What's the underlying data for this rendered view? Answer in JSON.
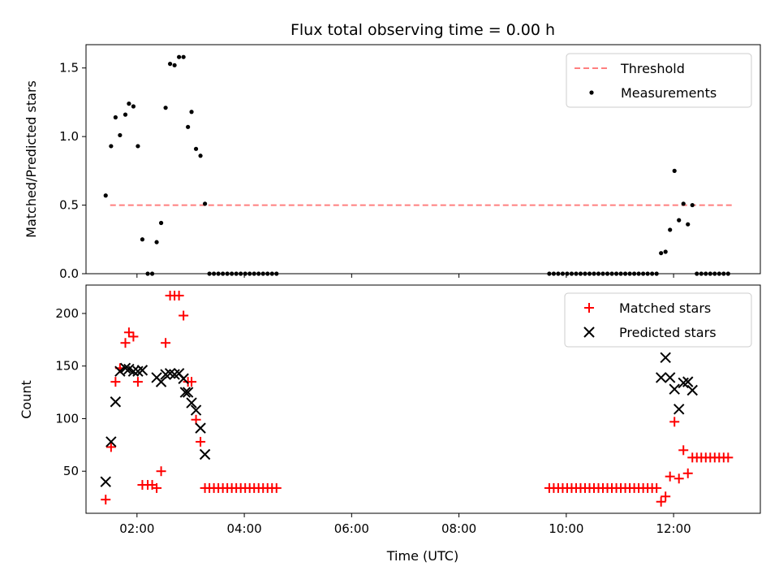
{
  "chart_data": [
    {
      "type": "scatter",
      "title": "Flux total observing time = 0.00 h",
      "xlabel": "",
      "ylabel": "Matched/Predicted stars",
      "xlim": [
        "01:03",
        "13:37"
      ],
      "ylim": [
        0,
        1.67
      ],
      "yticks": [
        0.0,
        0.5,
        1.0,
        1.5
      ],
      "ytick_labels": [
        "0.0",
        "0.5",
        "1.0",
        "1.5"
      ],
      "xticks": [
        "02:00",
        "04:00",
        "06:00",
        "08:00",
        "10:00",
        "12:00"
      ],
      "show_x_tick_labels": false,
      "grid": false,
      "legend_position": "top-right",
      "series": [
        {
          "name": "Threshold",
          "kind": "hline",
          "style": "dashed",
          "color": "#ff7f7f",
          "x_range": [
            "01:30",
            "13:05"
          ],
          "y": 0.5
        },
        {
          "name": "Measurements",
          "kind": "scatter",
          "marker": "dot",
          "color": "#000000",
          "points": [
            {
              "x": "01:25",
              "y": 0.57
            },
            {
              "x": "01:31",
              "y": 0.93
            },
            {
              "x": "01:36",
              "y": 1.14
            },
            {
              "x": "01:41",
              "y": 1.01
            },
            {
              "x": "01:47",
              "y": 1.16
            },
            {
              "x": "01:51",
              "y": 1.24
            },
            {
              "x": "01:56",
              "y": 1.22
            },
            {
              "x": "02:01",
              "y": 0.93
            },
            {
              "x": "02:06",
              "y": 0.25
            },
            {
              "x": "02:12",
              "y": 0.0
            },
            {
              "x": "02:17",
              "y": 0.0
            },
            {
              "x": "02:22",
              "y": 0.23
            },
            {
              "x": "02:27",
              "y": 0.37
            },
            {
              "x": "02:32",
              "y": 1.21
            },
            {
              "x": "02:37",
              "y": 1.53
            },
            {
              "x": "02:42",
              "y": 1.52
            },
            {
              "x": "02:47",
              "y": 1.58
            },
            {
              "x": "02:52",
              "y": 1.58
            },
            {
              "x": "02:57",
              "y": 1.07
            },
            {
              "x": "03:01",
              "y": 1.18
            },
            {
              "x": "03:06",
              "y": 0.91
            },
            {
              "x": "03:11",
              "y": 0.86
            },
            {
              "x": "03:16",
              "y": 0.51
            },
            {
              "x": "03:21",
              "y": 0.0
            },
            {
              "x": "03:26",
              "y": 0.0
            },
            {
              "x": "03:31",
              "y": 0.0
            },
            {
              "x": "03:36",
              "y": 0.0
            },
            {
              "x": "03:41",
              "y": 0.0
            },
            {
              "x": "03:46",
              "y": 0.0
            },
            {
              "x": "03:51",
              "y": 0.0
            },
            {
              "x": "03:56",
              "y": 0.0
            },
            {
              "x": "04:01",
              "y": 0.0
            },
            {
              "x": "04:06",
              "y": 0.0
            },
            {
              "x": "04:11",
              "y": 0.0
            },
            {
              "x": "04:16",
              "y": 0.0
            },
            {
              "x": "04:21",
              "y": 0.0
            },
            {
              "x": "04:26",
              "y": 0.0
            },
            {
              "x": "04:31",
              "y": 0.0
            },
            {
              "x": "04:36",
              "y": 0.0
            },
            {
              "x": "09:41",
              "y": 0.0
            },
            {
              "x": "09:46",
              "y": 0.0
            },
            {
              "x": "09:51",
              "y": 0.0
            },
            {
              "x": "09:56",
              "y": 0.0
            },
            {
              "x": "10:01",
              "y": 0.0
            },
            {
              "x": "10:06",
              "y": 0.0
            },
            {
              "x": "10:11",
              "y": 0.0
            },
            {
              "x": "10:16",
              "y": 0.0
            },
            {
              "x": "10:21",
              "y": 0.0
            },
            {
              "x": "10:26",
              "y": 0.0
            },
            {
              "x": "10:31",
              "y": 0.0
            },
            {
              "x": "10:36",
              "y": 0.0
            },
            {
              "x": "10:41",
              "y": 0.0
            },
            {
              "x": "10:46",
              "y": 0.0
            },
            {
              "x": "10:51",
              "y": 0.0
            },
            {
              "x": "10:56",
              "y": 0.0
            },
            {
              "x": "11:01",
              "y": 0.0
            },
            {
              "x": "11:06",
              "y": 0.0
            },
            {
              "x": "11:11",
              "y": 0.0
            },
            {
              "x": "11:16",
              "y": 0.0
            },
            {
              "x": "11:21",
              "y": 0.0
            },
            {
              "x": "11:26",
              "y": 0.0
            },
            {
              "x": "11:31",
              "y": 0.0
            },
            {
              "x": "11:36",
              "y": 0.0
            },
            {
              "x": "11:41",
              "y": 0.0
            },
            {
              "x": "11:46",
              "y": 0.15
            },
            {
              "x": "11:51",
              "y": 0.16
            },
            {
              "x": "11:56",
              "y": 0.32
            },
            {
              "x": "12:01",
              "y": 0.75
            },
            {
              "x": "12:06",
              "y": 0.39
            },
            {
              "x": "12:11",
              "y": 0.51
            },
            {
              "x": "12:16",
              "y": 0.36
            },
            {
              "x": "12:21",
              "y": 0.5
            },
            {
              "x": "12:26",
              "y": 0.0
            },
            {
              "x": "12:31",
              "y": 0.0
            },
            {
              "x": "12:36",
              "y": 0.0
            },
            {
              "x": "12:41",
              "y": 0.0
            },
            {
              "x": "12:46",
              "y": 0.0
            },
            {
              "x": "12:51",
              "y": 0.0
            },
            {
              "x": "12:56",
              "y": 0.0
            },
            {
              "x": "13:01",
              "y": 0.0
            }
          ]
        }
      ]
    },
    {
      "type": "scatter",
      "title": "",
      "xlabel": "Time (UTC)",
      "ylabel": "Count",
      "xlim": [
        "01:03",
        "13:37"
      ],
      "ylim": [
        10,
        227
      ],
      "yticks": [
        50,
        100,
        150,
        200
      ],
      "ytick_labels": [
        "50",
        "100",
        "150",
        "200"
      ],
      "xticks": [
        "02:00",
        "04:00",
        "06:00",
        "08:00",
        "10:00",
        "12:00"
      ],
      "xtick_labels": [
        "02:00",
        "04:00",
        "06:00",
        "08:00",
        "10:00",
        "12:00"
      ],
      "show_x_tick_labels": true,
      "grid": false,
      "legend_position": "top-right",
      "series": [
        {
          "name": "Matched stars",
          "kind": "scatter",
          "marker": "plus",
          "color": "#ff0000",
          "points": [
            {
              "x": "01:25",
              "y": 23
            },
            {
              "x": "01:31",
              "y": 73
            },
            {
              "x": "01:36",
              "y": 135
            },
            {
              "x": "01:41",
              "y": 148
            },
            {
              "x": "01:47",
              "y": 172
            },
            {
              "x": "01:51",
              "y": 182
            },
            {
              "x": "01:56",
              "y": 178
            },
            {
              "x": "02:01",
              "y": 135
            },
            {
              "x": "02:06",
              "y": 37
            },
            {
              "x": "02:12",
              "y": 37
            },
            {
              "x": "02:17",
              "y": 37
            },
            {
              "x": "02:22",
              "y": 34
            },
            {
              "x": "02:27",
              "y": 50
            },
            {
              "x": "02:32",
              "y": 172
            },
            {
              "x": "02:37",
              "y": 217
            },
            {
              "x": "02:42",
              "y": 217
            },
            {
              "x": "02:47",
              "y": 217
            },
            {
              "x": "02:52",
              "y": 198
            },
            {
              "x": "02:57",
              "y": 135
            },
            {
              "x": "03:01",
              "y": 135
            },
            {
              "x": "03:06",
              "y": 99
            },
            {
              "x": "03:11",
              "y": 78
            },
            {
              "x": "03:16",
              "y": 34
            },
            {
              "x": "03:21",
              "y": 34
            },
            {
              "x": "03:26",
              "y": 34
            },
            {
              "x": "03:31",
              "y": 34
            },
            {
              "x": "03:36",
              "y": 34
            },
            {
              "x": "03:41",
              "y": 34
            },
            {
              "x": "03:46",
              "y": 34
            },
            {
              "x": "03:51",
              "y": 34
            },
            {
              "x": "03:56",
              "y": 34
            },
            {
              "x": "04:01",
              "y": 34
            },
            {
              "x": "04:06",
              "y": 34
            },
            {
              "x": "04:11",
              "y": 34
            },
            {
              "x": "04:16",
              "y": 34
            },
            {
              "x": "04:21",
              "y": 34
            },
            {
              "x": "04:26",
              "y": 34
            },
            {
              "x": "04:31",
              "y": 34
            },
            {
              "x": "04:36",
              "y": 34
            },
            {
              "x": "09:41",
              "y": 34
            },
            {
              "x": "09:46",
              "y": 34
            },
            {
              "x": "09:51",
              "y": 34
            },
            {
              "x": "09:56",
              "y": 34
            },
            {
              "x": "10:01",
              "y": 34
            },
            {
              "x": "10:06",
              "y": 34
            },
            {
              "x": "10:11",
              "y": 34
            },
            {
              "x": "10:16",
              "y": 34
            },
            {
              "x": "10:21",
              "y": 34
            },
            {
              "x": "10:26",
              "y": 34
            },
            {
              "x": "10:31",
              "y": 34
            },
            {
              "x": "10:36",
              "y": 34
            },
            {
              "x": "10:41",
              "y": 34
            },
            {
              "x": "10:46",
              "y": 34
            },
            {
              "x": "10:51",
              "y": 34
            },
            {
              "x": "10:56",
              "y": 34
            },
            {
              "x": "11:01",
              "y": 34
            },
            {
              "x": "11:06",
              "y": 34
            },
            {
              "x": "11:11",
              "y": 34
            },
            {
              "x": "11:16",
              "y": 34
            },
            {
              "x": "11:21",
              "y": 34
            },
            {
              "x": "11:26",
              "y": 34
            },
            {
              "x": "11:31",
              "y": 34
            },
            {
              "x": "11:36",
              "y": 34
            },
            {
              "x": "11:41",
              "y": 34
            },
            {
              "x": "11:46",
              "y": 21
            },
            {
              "x": "11:51",
              "y": 26
            },
            {
              "x": "11:56",
              "y": 45
            },
            {
              "x": "12:01",
              "y": 97
            },
            {
              "x": "12:06",
              "y": 43
            },
            {
              "x": "12:11",
              "y": 70
            },
            {
              "x": "12:16",
              "y": 48
            },
            {
              "x": "12:21",
              "y": 63
            },
            {
              "x": "12:26",
              "y": 63
            },
            {
              "x": "12:31",
              "y": 63
            },
            {
              "x": "12:36",
              "y": 63
            },
            {
              "x": "12:41",
              "y": 63
            },
            {
              "x": "12:46",
              "y": 63
            },
            {
              "x": "12:51",
              "y": 63
            },
            {
              "x": "12:56",
              "y": 63
            },
            {
              "x": "13:01",
              "y": 63
            }
          ]
        },
        {
          "name": "Predicted stars",
          "kind": "scatter",
          "marker": "cross",
          "color": "#000000",
          "points": [
            {
              "x": "01:25",
              "y": 40
            },
            {
              "x": "01:31",
              "y": 78
            },
            {
              "x": "01:36",
              "y": 116
            },
            {
              "x": "01:41",
              "y": 145
            },
            {
              "x": "01:47",
              "y": 148
            },
            {
              "x": "01:51",
              "y": 147
            },
            {
              "x": "01:56",
              "y": 145
            },
            {
              "x": "02:01",
              "y": 145
            },
            {
              "x": "02:06",
              "y": 146
            },
            {
              "x": "02:22",
              "y": 139
            },
            {
              "x": "02:27",
              "y": 135
            },
            {
              "x": "02:32",
              "y": 142
            },
            {
              "x": "02:37",
              "y": 143
            },
            {
              "x": "02:42",
              "y": 142
            },
            {
              "x": "02:47",
              "y": 143
            },
            {
              "x": "02:52",
              "y": 138
            },
            {
              "x": "02:54",
              "y": 125
            },
            {
              "x": "02:57",
              "y": 125
            },
            {
              "x": "03:01",
              "y": 115
            },
            {
              "x": "03:06",
              "y": 108
            },
            {
              "x": "03:11",
              "y": 91
            },
            {
              "x": "03:16",
              "y": 66
            },
            {
              "x": "11:46",
              "y": 139
            },
            {
              "x": "11:51",
              "y": 158
            },
            {
              "x": "11:56",
              "y": 139
            },
            {
              "x": "12:01",
              "y": 128
            },
            {
              "x": "12:06",
              "y": 109
            },
            {
              "x": "12:11",
              "y": 134
            },
            {
              "x": "12:16",
              "y": 135
            },
            {
              "x": "12:21",
              "y": 127
            }
          ]
        }
      ]
    }
  ]
}
